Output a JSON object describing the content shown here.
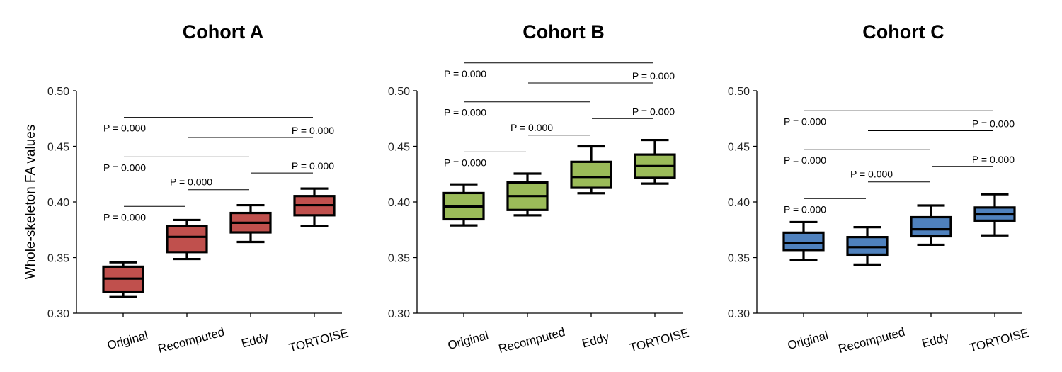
{
  "ylabel": "Whole-skeleton FA values",
  "chart_data": [
    {
      "type": "box",
      "title": "Cohort A",
      "color": "#C0504D",
      "ylim": [
        0.3,
        0.5
      ],
      "yticks": [
        "0.30",
        "0.35",
        "0.40",
        "0.45",
        "0.50"
      ],
      "categories": [
        "Original",
        "Recomputed",
        "Eddy",
        "TORTOISE"
      ],
      "boxes": [
        {
          "whisker_low": 0.3145,
          "q1": 0.3194,
          "median": 0.3311,
          "q3": 0.3418,
          "whisker_high": 0.3458
        },
        {
          "whisker_low": 0.3487,
          "q1": 0.3549,
          "median": 0.3686,
          "q3": 0.3785,
          "whisker_high": 0.3838
        },
        {
          "whisker_low": 0.364,
          "q1": 0.3726,
          "median": 0.3813,
          "q3": 0.3901,
          "whisker_high": 0.3971
        },
        {
          "whisker_low": 0.3785,
          "q1": 0.388,
          "median": 0.3971,
          "q3": 0.4053,
          "whisker_high": 0.412
        }
      ],
      "comparisons": [
        {
          "from": 0,
          "to": 3,
          "y": 0.476,
          "label": "P = 0.000"
        },
        {
          "from": 1,
          "to": 3,
          "y": 0.458,
          "label": "P = 0.000"
        },
        {
          "from": 0,
          "to": 2,
          "y": 0.4405,
          "label": "P = 0.000"
        },
        {
          "from": 2,
          "to": 3,
          "y": 0.426,
          "label": "P = 0.000"
        },
        {
          "from": 1,
          "to": 2,
          "y": 0.411,
          "label": "P = 0.000"
        },
        {
          "from": 0,
          "to": 1,
          "y": 0.396,
          "label": "P = 0.000"
        }
      ]
    },
    {
      "type": "box",
      "title": "Cohort B",
      "color": "#9BBB59",
      "ylim": [
        0.3,
        0.5
      ],
      "yticks": [
        "0.30",
        "0.35",
        "0.40",
        "0.45",
        "0.50"
      ],
      "categories": [
        "Original",
        "Recomputed",
        "Eddy",
        "TORTOISE"
      ],
      "boxes": [
        {
          "whisker_low": 0.3789,
          "q1": 0.3844,
          "median": 0.3958,
          "q3": 0.408,
          "whisker_high": 0.4158
        },
        {
          "whisker_low": 0.388,
          "q1": 0.3928,
          "median": 0.4053,
          "q3": 0.4175,
          "whisker_high": 0.4255
        },
        {
          "whisker_low": 0.4078,
          "q1": 0.4127,
          "median": 0.4224,
          "q3": 0.4361,
          "whisker_high": 0.45
        },
        {
          "whisker_low": 0.4165,
          "q1": 0.4217,
          "median": 0.4323,
          "q3": 0.4426,
          "whisker_high": 0.4557
        }
      ],
      "comparisons": [
        {
          "from": 0,
          "to": 3,
          "y": 0.525,
          "label": "P = 0.000"
        },
        {
          "from": 1,
          "to": 3,
          "y": 0.507,
          "label": "P = 0.000"
        },
        {
          "from": 0,
          "to": 2,
          "y": 0.49,
          "label": "P = 0.000"
        },
        {
          "from": 2,
          "to": 3,
          "y": 0.475,
          "label": "P = 0.000"
        },
        {
          "from": 1,
          "to": 2,
          "y": 0.46,
          "label": "P = 0.000"
        },
        {
          "from": 0,
          "to": 1,
          "y": 0.445,
          "label": "P = 0.000"
        }
      ]
    },
    {
      "type": "box",
      "title": "Cohort C",
      "color": "#4F81BD",
      "ylim": [
        0.3,
        0.5
      ],
      "yticks": [
        "0.30",
        "0.35",
        "0.40",
        "0.45",
        "0.50"
      ],
      "categories": [
        "Original",
        "Recomputed",
        "Eddy",
        "TORTOISE"
      ],
      "boxes": [
        {
          "whisker_low": 0.3475,
          "q1": 0.3568,
          "median": 0.3632,
          "q3": 0.3724,
          "whisker_high": 0.3819
        },
        {
          "whisker_low": 0.3437,
          "q1": 0.3526,
          "median": 0.3594,
          "q3": 0.3684,
          "whisker_high": 0.3773
        },
        {
          "whisker_low": 0.3615,
          "q1": 0.3691,
          "median": 0.3754,
          "q3": 0.3863,
          "whisker_high": 0.3968
        },
        {
          "whisker_low": 0.3699,
          "q1": 0.3832,
          "median": 0.3888,
          "q3": 0.395,
          "whisker_high": 0.4069
        }
      ],
      "comparisons": [
        {
          "from": 0,
          "to": 3,
          "y": 0.482,
          "label": "P = 0.000"
        },
        {
          "from": 1,
          "to": 3,
          "y": 0.464,
          "label": "P = 0.000"
        },
        {
          "from": 0,
          "to": 2,
          "y": 0.447,
          "label": "P = 0.000"
        },
        {
          "from": 2,
          "to": 3,
          "y": 0.432,
          "label": "P = 0.000"
        },
        {
          "from": 1,
          "to": 2,
          "y": 0.418,
          "label": "P = 0.000"
        },
        {
          "from": 0,
          "to": 1,
          "y": 0.403,
          "label": "P = 0.000"
        }
      ]
    }
  ]
}
